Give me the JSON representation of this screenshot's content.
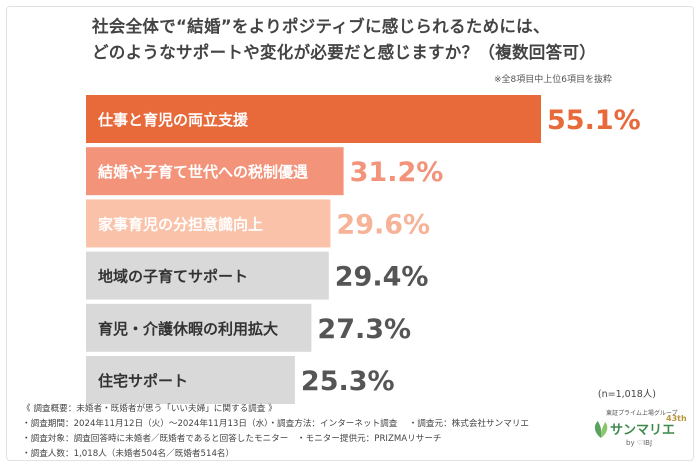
{
  "header": {
    "title_line1": "社会全体で“結婚”をよりポジティブに感じられるためには、",
    "title_line2": "どのようなサポートや変化が必要だと感じますか？（複数回答可）",
    "note": "※全8項目中上位6項目を抜粋"
  },
  "chart_data": {
    "type": "bar",
    "orientation": "horizontal",
    "categories": [
      "仕事と育児の両立支援",
      "結婚や子育て世代への税制優遇",
      "家事育児の分担意識向上",
      "地域の子育てサポート",
      "育児・介護休暇の利用拡大",
      "住宅サポート"
    ],
    "values": [
      55.1,
      31.2,
      29.6,
      29.4,
      27.3,
      25.3
    ],
    "value_labels": [
      "55.1%",
      "31.2%",
      "29.6%",
      "29.4%",
      "27.3%",
      "25.3%"
    ],
    "unit": "%",
    "bar_colors": [
      "#e8693a",
      "#f2937a",
      "#f9c2a9",
      "#d9d9d9",
      "#d9d9d9",
      "#d9d9d9"
    ],
    "label_colors": [
      "#ffffff",
      "#ffffff",
      "#ffffff",
      "#333333",
      "#333333",
      "#333333"
    ],
    "value_colors": [
      "#e8693a",
      "#f2937a",
      "#f6b398",
      "#555555",
      "#555555",
      "#555555"
    ]
  },
  "sample": "(n=1,018人)",
  "survey_lines": [
    "《 調査概要：未婚者・既婚者が思う「いい夫婦」に関する調査 》",
    "・調査期間：2024年11月12日（火）～2024年11月13日（水）・調査方法：インターネット調査　 ・調査元：株式会社サンマリエ",
    "・調査対象：調査回答時に未婚者／既婚者であると回答したモニター　・モニター提供元：PRIZMAリサーチ",
    "・調査人数：1,018人（未婚者504名／既婚者514名）"
  ],
  "logo": {
    "group": "東証プライム上場グループ",
    "name": "サンマリエ",
    "by": "by ♡IBJ",
    "anniversary": "43th"
  }
}
